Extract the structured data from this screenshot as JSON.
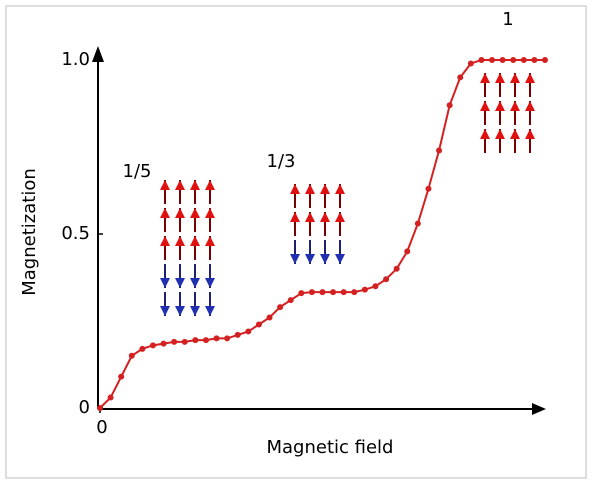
{
  "chart_data": {
    "type": "line",
    "x_label": "Magnetic field",
    "y_label": "Magnetization",
    "x": [
      0,
      1,
      2,
      3,
      4,
      5,
      6,
      7,
      8,
      9,
      10,
      11,
      12,
      13,
      14,
      15,
      16,
      17,
      18,
      19,
      20,
      21,
      22,
      23,
      24,
      25,
      26,
      27,
      28,
      29,
      30,
      31,
      32,
      33,
      34,
      35,
      36,
      37,
      38,
      39,
      40,
      41,
      42
    ],
    "series": [
      {
        "name": "Magnetization",
        "color": "#d42020",
        "values": [
          0,
          0.03,
          0.09,
          0.15,
          0.17,
          0.18,
          0.185,
          0.19,
          0.19,
          0.195,
          0.195,
          0.2,
          0.2,
          0.21,
          0.22,
          0.24,
          0.26,
          0.29,
          0.31,
          0.33,
          0.333,
          0.333,
          0.333,
          0.333,
          0.333,
          0.34,
          0.35,
          0.37,
          0.4,
          0.45,
          0.53,
          0.63,
          0.74,
          0.87,
          0.95,
          0.99,
          1,
          1,
          1,
          1,
          1,
          1,
          1
        ]
      }
    ],
    "xlim": [
      0,
      42
    ],
    "xticks": [
      0
    ],
    "ylim": [
      0,
      1.0
    ],
    "yticks": [
      0,
      0.5,
      {
        "value": 1.0,
        "label": "1.0"
      }
    ],
    "annotations": [
      "1/5",
      "1/3",
      "1"
    ]
  }
}
